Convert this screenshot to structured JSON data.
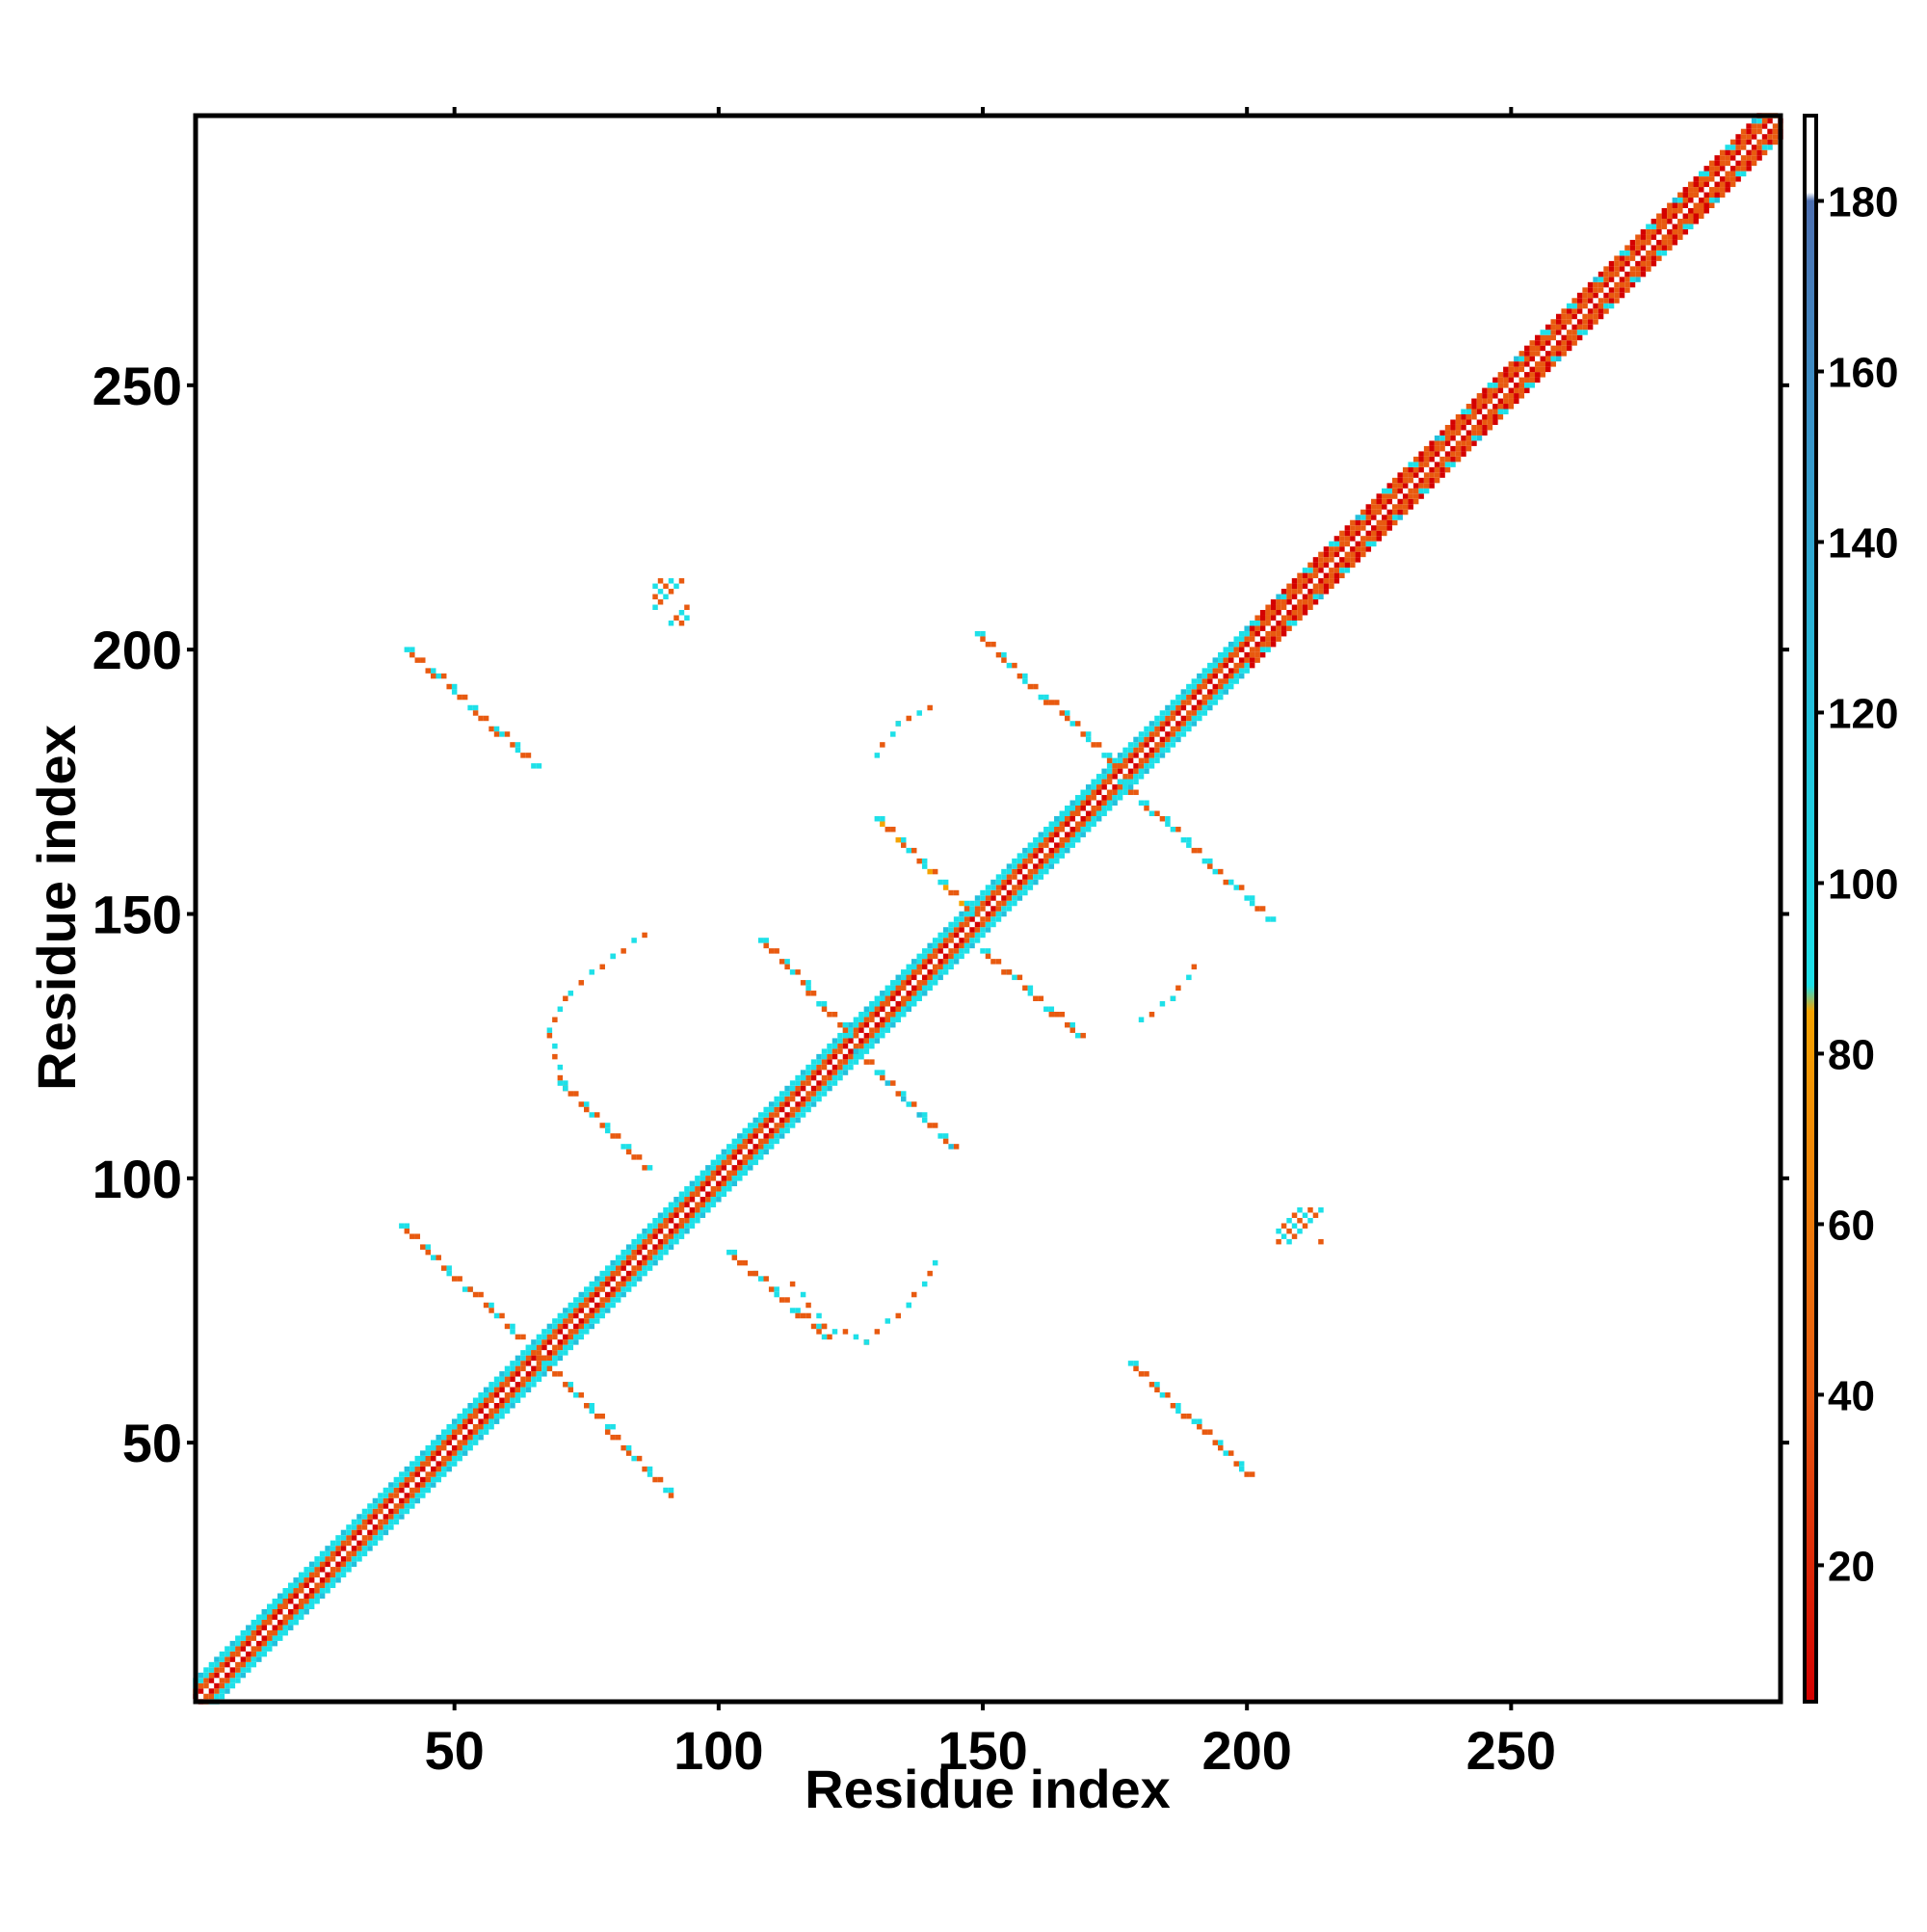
{
  "chart_data": {
    "type": "heatmap",
    "title": "",
    "xlabel": "Residue index",
    "ylabel": "Residue index",
    "xlim": [
      1,
      301
    ],
    "ylim": [
      1,
      301
    ],
    "x_ticks": [
      50,
      100,
      150,
      200,
      250
    ],
    "y_ticks": [
      50,
      100,
      150,
      200,
      250
    ],
    "colorbar": {
      "range": [
        4,
        190
      ],
      "ticks": [
        20,
        40,
        60,
        80,
        100,
        120,
        140,
        160,
        180
      ],
      "stops": [
        {
          "value": 4,
          "color": "#d40000"
        },
        {
          "value": 40,
          "color": "#e85a10"
        },
        {
          "value": 85,
          "color": "#f5a300"
        },
        {
          "value": 88,
          "color": "#1ee0e8"
        },
        {
          "value": 120,
          "color": "#23c0dc"
        },
        {
          "value": 155,
          "color": "#3a92c8"
        },
        {
          "value": 180,
          "color": "#4d6fb0"
        },
        {
          "value": 181,
          "color": "#ffffff"
        },
        {
          "value": 190,
          "color": "#ffffff"
        }
      ]
    },
    "diagonal": {
      "from": 1,
      "to": 301,
      "band_halfwidth": 4
    },
    "contact_segments": [
      {
        "x": [
          67,
          91
        ],
        "y": [
          65,
          40
        ],
        "value": 72
      },
      {
        "x": [
          40,
          66
        ],
        "y": [
          91,
          66
        ],
        "value": 75
      },
      {
        "x": [
          70,
          86
        ],
        "y": [
          118,
          102
        ],
        "value": 70
      },
      {
        "x": [
          102,
          120
        ],
        "y": [
          86,
          70
        ],
        "value": 72
      },
      {
        "x": [
          41,
          65
        ],
        "y": [
          200,
          178
        ],
        "value": 68
      },
      {
        "x": [
          108,
          126
        ],
        "y": [
          145,
          126
        ],
        "value": 80
      },
      {
        "x": [
          126,
          145
        ],
        "y": [
          124,
          105
        ],
        "value": 95
      },
      {
        "x": [
          130,
          148
        ],
        "y": [
          168,
          150
        ],
        "value": 85
      },
      {
        "x": [
          150,
          168
        ],
        "y": [
          143,
          127
        ],
        "value": 78
      },
      {
        "x": [
          149,
          176
        ],
        "y": [
          203,
          177
        ],
        "value": 82
      },
      {
        "x": [
          176,
          204
        ],
        "y": [
          175,
          149
        ],
        "value": 88
      },
      {
        "x": [
          178,
          201
        ],
        "y": [
          65,
          43
        ],
        "value": 70
      }
    ],
    "contact_arcs": [
      {
        "x": [
          68,
          72,
          80,
          86
        ],
        "y": [
          128,
          135,
          142,
          146
        ],
        "value": 100
      },
      {
        "x": [
          68,
          71
        ],
        "y": [
          127,
          117
        ],
        "value": 60
      },
      {
        "x": [
          114,
          120,
          128
        ],
        "y": [
          80,
          72,
          69
        ],
        "value": 75
      },
      {
        "x": [
          128,
          136,
          142
        ],
        "y": [
          69,
          76,
          85
        ],
        "value": 95
      },
      {
        "x": [
          130,
          134,
          140
        ],
        "y": [
          180,
          186,
          189
        ],
        "value": 98
      },
      {
        "x": [
          180,
          186,
          190
        ],
        "y": [
          130,
          134,
          140
        ],
        "value": 96
      }
    ],
    "contact_patches": [
      {
        "x": [
          88,
          94
        ],
        "y": [
          205,
          213
        ],
        "value": 70
      },
      {
        "x": [
          206,
          214
        ],
        "y": [
          88,
          94
        ],
        "value": 62
      }
    ]
  }
}
